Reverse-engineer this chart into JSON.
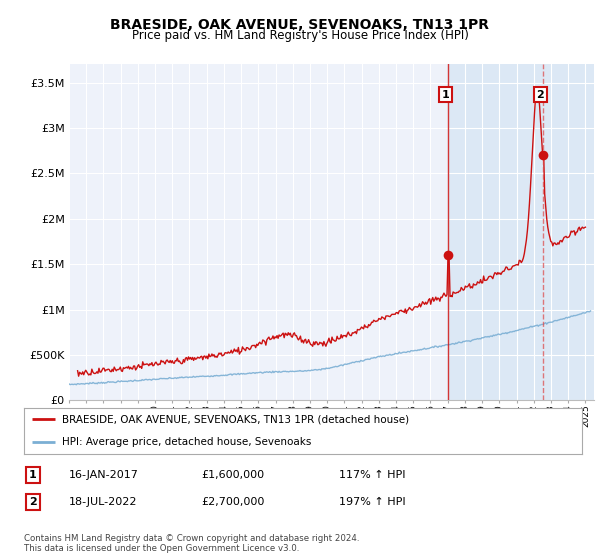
{
  "title": "BRAESIDE, OAK AVENUE, SEVENOAKS, TN13 1PR",
  "subtitle": "Price paid vs. HM Land Registry's House Price Index (HPI)",
  "title_fontsize": 10,
  "subtitle_fontsize": 8.5,
  "ylim": [
    0,
    3700000
  ],
  "yticks": [
    0,
    500000,
    1000000,
    1500000,
    2000000,
    2500000,
    3000000,
    3500000
  ],
  "ytick_labels": [
    "£0",
    "£500K",
    "£1M",
    "£1.5M",
    "£2M",
    "£2.5M",
    "£3M",
    "£3.5M"
  ],
  "xlim_start": 1995.0,
  "xlim_end": 2025.5,
  "xtick_years": [
    1995,
    1996,
    1997,
    1998,
    1999,
    2000,
    2001,
    2002,
    2003,
    2004,
    2005,
    2006,
    2007,
    2008,
    2009,
    2010,
    2011,
    2012,
    2013,
    2014,
    2015,
    2016,
    2017,
    2018,
    2019,
    2020,
    2021,
    2022,
    2023,
    2024,
    2025
  ],
  "hpi_color": "#7bafd4",
  "price_color": "#cc1111",
  "marker1_x": 2017.04,
  "marker1_y": 1600000,
  "marker2_x": 2022.54,
  "marker2_y": 2700000,
  "annotation1_label": "1",
  "annotation2_label": "2",
  "shaded_start": 2017.04,
  "shaded_end2": 2022.54,
  "legend_label1": "BRAESIDE, OAK AVENUE, SEVENOAKS, TN13 1PR (detached house)",
  "legend_label2": "HPI: Average price, detached house, Sevenoaks",
  "note1_label": "1",
  "note1_date": "16-JAN-2017",
  "note1_price": "£1,600,000",
  "note1_hpi": "117% ↑ HPI",
  "note2_label": "2",
  "note2_date": "18-JUL-2022",
  "note2_price": "£2,700,000",
  "note2_hpi": "197% ↑ HPI",
  "copyright_text": "Contains HM Land Registry data © Crown copyright and database right 2024.\nThis data is licensed under the Open Government Licence v3.0.",
  "background_color": "#ffffff",
  "plot_bg_color": "#eef2fa",
  "plot_bg_shaded": "#dce8f5",
  "grid_color": "#ffffff"
}
